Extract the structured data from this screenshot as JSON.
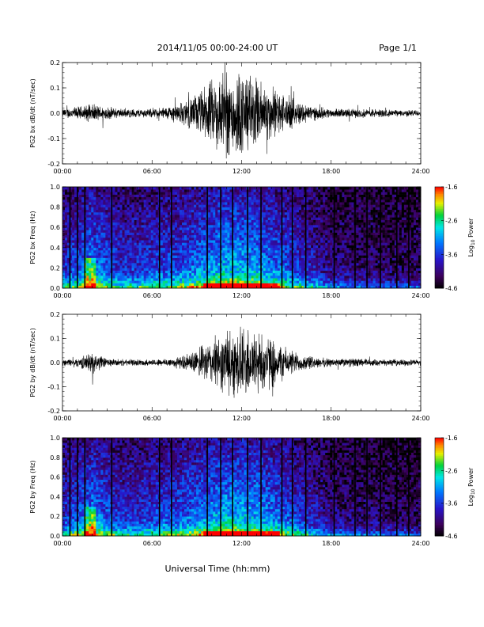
{
  "header": {
    "title": "2014/11/05  00:00-24:00 UT",
    "page": "Page 1/1"
  },
  "xlabel": "Universal Time (hh:mm)",
  "colormap": "rainbow (black-purple-blue-cyan-green-yellow-red)",
  "chart_data": [
    {
      "type": "line",
      "ylabel": "PG2 bx dB/dt (nT/sec)",
      "xlim": [
        0,
        24
      ],
      "ylim": [
        -0.2,
        0.2
      ],
      "xticks": [
        "00:00",
        "06:00",
        "12:00",
        "18:00",
        "24:00"
      ],
      "yticks": [
        "-0.2",
        "-0.1",
        "0.0",
        "0.1",
        "0.2"
      ],
      "envelope": {
        "hours": [
          0,
          1,
          2,
          3,
          4,
          5,
          6,
          7,
          8,
          9,
          10,
          11,
          12,
          13,
          14,
          15,
          16,
          17,
          18,
          19,
          20,
          21,
          22,
          23,
          24
        ],
        "amplitude": [
          0.02,
          0.03,
          0.04,
          0.03,
          0.02,
          0.02,
          0.02,
          0.03,
          0.05,
          0.09,
          0.15,
          0.2,
          0.2,
          0.16,
          0.12,
          0.08,
          0.05,
          0.03,
          0.02,
          0.02,
          0.02,
          0.02,
          0.015,
          0.015,
          0.015
        ]
      },
      "color": "#000000"
    },
    {
      "type": "heatmap",
      "ylabel": "PG2 bx Freq (Hz)",
      "xlim": [
        0,
        24
      ],
      "ylim": [
        0,
        1.0
      ],
      "xticks": [
        "00:00",
        "06:00",
        "12:00",
        "18:00",
        "24:00"
      ],
      "yticks": [
        "0.0",
        "0.2",
        "0.4",
        "0.6",
        "0.8",
        "1.0"
      ],
      "colorbar": {
        "label": "Log10 Power",
        "range": [
          -4.6,
          -1.6
        ],
        "ticks": [
          "-1.6",
          "-2.6",
          "-3.6",
          "-4.6"
        ]
      },
      "gap_hours": [
        0.5,
        1.0,
        1.5,
        3.3,
        6.5,
        7.3,
        9.7,
        10.6,
        11.4,
        12.4,
        13.3,
        14.7,
        15.4,
        16.3,
        18.2,
        19.6,
        20.4,
        21.3,
        22.4,
        23.2
      ]
    },
    {
      "type": "line",
      "ylabel": "PG2 by dB/dt (nT/sec)",
      "xlim": [
        0,
        24
      ],
      "ylim": [
        -0.2,
        0.2
      ],
      "xticks": [
        "00:00",
        "06:00",
        "12:00",
        "18:00",
        "24:00"
      ],
      "yticks": [
        "-0.2",
        "-0.1",
        "0.0",
        "0.1",
        "0.2"
      ],
      "envelope": {
        "hours": [
          0,
          1,
          2,
          3,
          4,
          5,
          6,
          7,
          8,
          9,
          10,
          11,
          12,
          13,
          14,
          15,
          16,
          17,
          18,
          19,
          20,
          21,
          22,
          23,
          24
        ],
        "amplitude": [
          0.015,
          0.02,
          0.05,
          0.02,
          0.015,
          0.015,
          0.015,
          0.02,
          0.03,
          0.06,
          0.11,
          0.15,
          0.17,
          0.16,
          0.12,
          0.07,
          0.04,
          0.025,
          0.02,
          0.02,
          0.02,
          0.015,
          0.015,
          0.015,
          0.015
        ]
      },
      "color": "#000000"
    },
    {
      "type": "heatmap",
      "ylabel": "PG2 by Freq (Hz)",
      "xlim": [
        0,
        24
      ],
      "ylim": [
        0,
        1.0
      ],
      "xticks": [
        "00:00",
        "06:00",
        "12:00",
        "18:00",
        "24:00"
      ],
      "yticks": [
        "0.0",
        "0.2",
        "0.4",
        "0.6",
        "0.8",
        "1.0"
      ],
      "colorbar": {
        "label": "Log10 Power",
        "range": [
          -4.6,
          -1.6
        ],
        "ticks": [
          "-1.6",
          "-2.6",
          "-3.6",
          "-4.6"
        ]
      },
      "gap_hours": [
        0.5,
        1.0,
        1.5,
        3.3,
        6.5,
        7.3,
        9.7,
        10.6,
        11.4,
        12.4,
        13.3,
        14.7,
        15.4,
        16.3,
        18.2,
        19.6,
        20.4,
        21.3,
        22.4,
        23.2
      ]
    }
  ]
}
